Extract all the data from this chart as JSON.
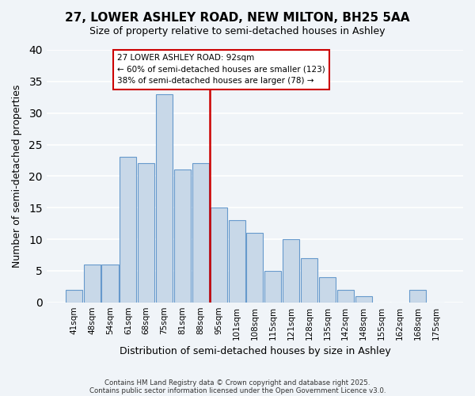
{
  "title": "27, LOWER ASHLEY ROAD, NEW MILTON, BH25 5AA",
  "subtitle": "Size of property relative to semi-detached houses in Ashley",
  "xlabel": "Distribution of semi-detached houses by size in Ashley",
  "ylabel": "Number of semi-detached properties",
  "bar_color": "#c8d8e8",
  "bar_edge_color": "#6699cc",
  "background_color": "#f0f4f8",
  "grid_color": "#ffffff",
  "categories": [
    "41sqm",
    "48sqm",
    "54sqm",
    "61sqm",
    "68sqm",
    "75sqm",
    "81sqm",
    "88sqm",
    "95sqm",
    "101sqm",
    "108sqm",
    "115sqm",
    "121sqm",
    "128sqm",
    "135sqm",
    "142sqm",
    "148sqm",
    "155sqm",
    "162sqm",
    "168sqm",
    "175sqm"
  ],
  "values": [
    2,
    6,
    6,
    23,
    22,
    33,
    21,
    22,
    15,
    13,
    11,
    5,
    10,
    7,
    4,
    2,
    1,
    0,
    0,
    2,
    0
  ],
  "vline_index": 8,
  "vline_color": "#cc0000",
  "annotation_title": "27 LOWER ASHLEY ROAD: 92sqm",
  "annotation_line1": "← 60% of semi-detached houses are smaller (123)",
  "annotation_line2": "38% of semi-detached houses are larger (78) →",
  "ylim": [
    0,
    40
  ],
  "yticks": [
    0,
    5,
    10,
    15,
    20,
    25,
    30,
    35,
    40
  ],
  "footnote1": "Contains HM Land Registry data © Crown copyright and database right 2025.",
  "footnote2": "Contains public sector information licensed under the Open Government Licence v3.0."
}
